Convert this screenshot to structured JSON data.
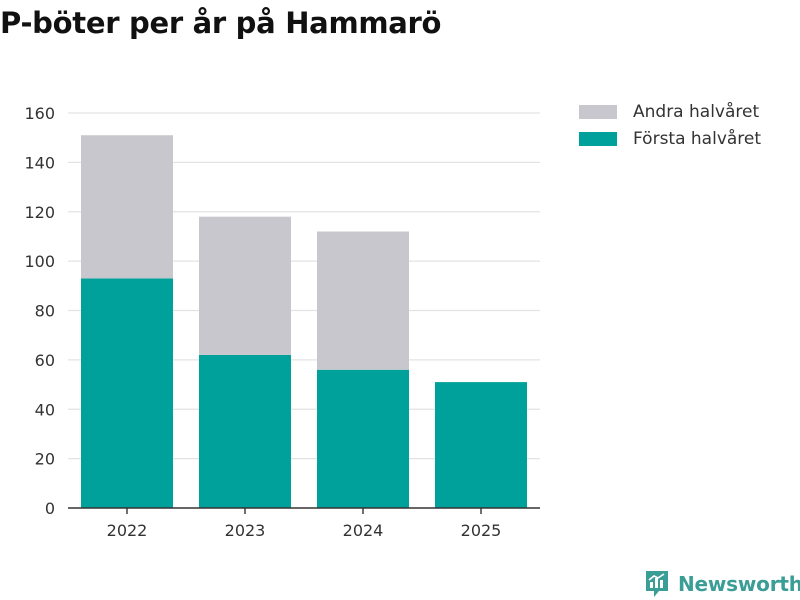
{
  "chart_data": {
    "type": "bar",
    "stacked": true,
    "title": "P-böter per år på Hammarö",
    "categories": [
      "2022",
      "2023",
      "2024",
      "2025"
    ],
    "series": [
      {
        "name": "Första halvåret",
        "color": "#00a19a",
        "values": [
          93,
          62,
          56,
          51
        ]
      },
      {
        "name": "Andra halvåret",
        "color": "#c8c7cd",
        "values": [
          58,
          56,
          56,
          null
        ]
      }
    ],
    "legend_order": [
      "Andra halvåret",
      "Första halvåret"
    ],
    "y_ticks": [
      0,
      20,
      40,
      60,
      80,
      100,
      120,
      140,
      160
    ],
    "ylim": [
      0,
      160
    ],
    "xlabel": "",
    "ylabel": "",
    "grid": true,
    "legend_position": "right"
  },
  "brand": {
    "name": "Newsworthy",
    "icon": "newsworthy-logo-icon",
    "color": "#3a9e97"
  }
}
